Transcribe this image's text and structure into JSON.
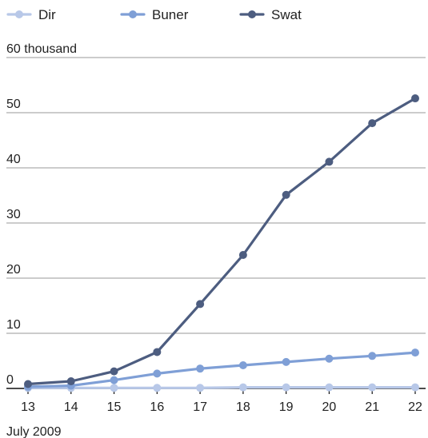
{
  "chart_data": {
    "type": "line",
    "x": [
      "13",
      "14",
      "15",
      "16",
      "17",
      "18",
      "19",
      "20",
      "21",
      "22"
    ],
    "x_caption": "July 2009",
    "y_tick_labels": [
      "0",
      "10",
      "20",
      "30",
      "40",
      "50",
      "60 thousand"
    ],
    "y_ticks": [
      0,
      10,
      20,
      30,
      40,
      50,
      60
    ],
    "ylim": [
      0,
      60
    ],
    "grid": true,
    "legend_position": "top-left",
    "series": [
      {
        "name": "Dir",
        "color": "#b8c8e8",
        "values": [
          0.1,
          0.1,
          0.1,
          0.1,
          0.1,
          0.2,
          0.2,
          0.2,
          0.2,
          0.2
        ]
      },
      {
        "name": "Buner",
        "color": "#7f9fd6",
        "values": [
          0.3,
          0.5,
          1.5,
          2.7,
          3.6,
          4.2,
          4.8,
          5.4,
          5.9,
          6.5
        ]
      },
      {
        "name": "Swat",
        "color": "#4d5d80",
        "values": [
          0.8,
          1.3,
          3.1,
          6.6,
          15.3,
          24.2,
          35.1,
          41.1,
          48.1,
          52.6
        ]
      }
    ]
  }
}
